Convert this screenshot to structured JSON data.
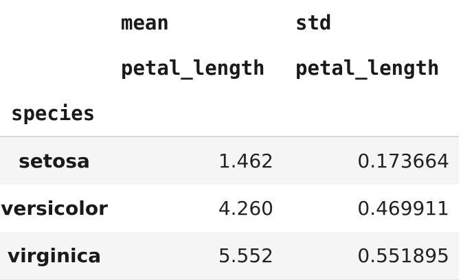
{
  "table": {
    "column_groups": [
      "mean",
      "std"
    ],
    "column_names": [
      "petal_length",
      "petal_length"
    ],
    "index_name": "species",
    "rows": [
      {
        "label": "setosa",
        "mean": "1.462",
        "std": "0.173664"
      },
      {
        "label": "versicolor",
        "mean": "4.260",
        "std": "0.469911"
      },
      {
        "label": "virginica",
        "mean": "5.552",
        "std": "0.551895"
      }
    ]
  },
  "colors": {
    "stripe": "#f5f5f5",
    "text": "#1a1a1a",
    "rule": "#d9d9d9"
  }
}
